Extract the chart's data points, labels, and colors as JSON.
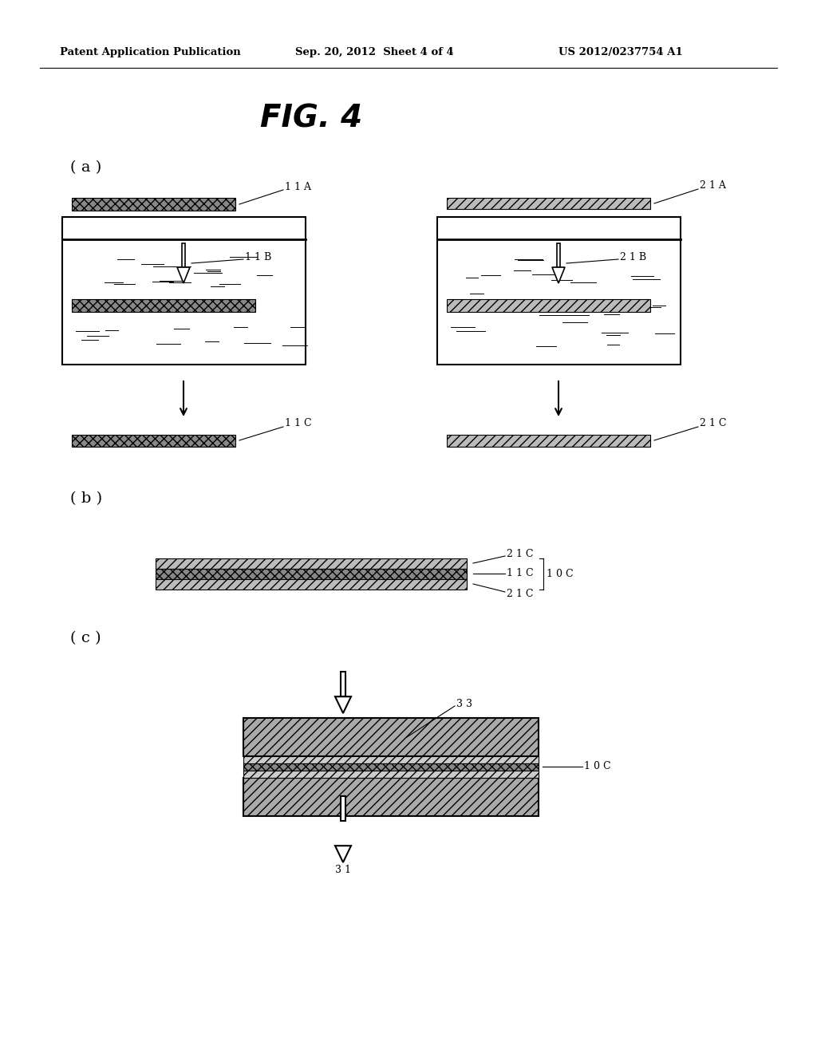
{
  "bg_color": "#ffffff",
  "header_left": "Patent Application Publication",
  "header_mid": "Sep. 20, 2012  Sheet 4 of 4",
  "header_right": "US 2012/0237754 A1",
  "fig_title": "FIG. 4",
  "label_a": "( a )",
  "label_b": "( b )",
  "label_c": "( c )"
}
